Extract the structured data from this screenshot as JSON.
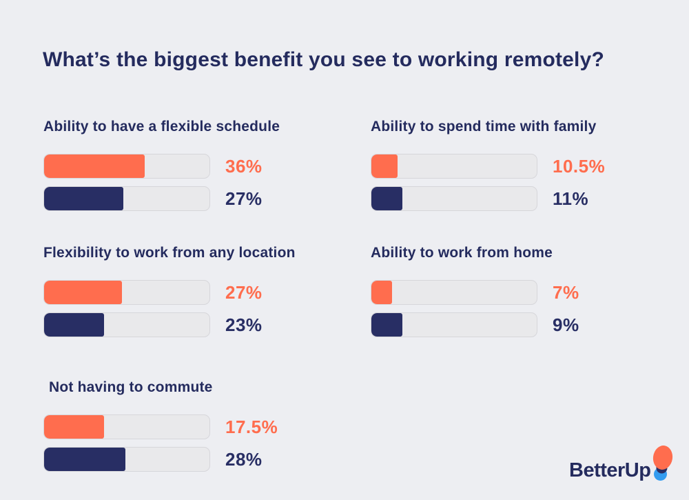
{
  "page": {
    "title": "What’s the biggest benefit you see to working remotely?"
  },
  "colors": {
    "background": "#EDEEF2",
    "orange": "#FF6D4E",
    "navy": "#282E64",
    "text": "#242B5E",
    "track": "#E9E9EB",
    "track_border": "#D6D6DA",
    "logo_blue": "#339CF0"
  },
  "chart_data": {
    "type": "bar",
    "orientation": "horizontal",
    "title": "What’s the biggest benefit you see to working remotely?",
    "unit": "%",
    "legend": "none",
    "axes": "none (value labels shown next to each bar)",
    "layout": "two columns of grouped progress-style bars, fifth group bottom-left",
    "categories": [
      "Ability to have a flexible schedule",
      "Ability to spend time with family",
      "Flexibility to work from any location",
      "Ability to work from home",
      "Not having to commute"
    ],
    "series": [
      {
        "name": "orange-series",
        "color": "#FF6D4E",
        "values": [
          36,
          10.5,
          27,
          7,
          17.5
        ]
      },
      {
        "name": "navy-series",
        "color": "#282E64",
        "values": [
          27,
          11,
          23,
          9,
          28
        ]
      }
    ],
    "groups": [
      {
        "label": "Ability to have a flexible schedule",
        "bars": [
          {
            "series": "orange",
            "value": 36,
            "display": "36%",
            "fill_fraction": 0.61
          },
          {
            "series": "navy",
            "value": 27,
            "display": "27%",
            "fill_fraction": 0.48
          }
        ]
      },
      {
        "label": "Ability to spend time with family",
        "bars": [
          {
            "series": "orange",
            "value": 10.5,
            "display": "10.5%",
            "fill_fraction": 0.16
          },
          {
            "series": "navy",
            "value": 11,
            "display": "11%",
            "fill_fraction": 0.186
          }
        ]
      },
      {
        "label": "Flexibility to work from any location",
        "bars": [
          {
            "series": "orange",
            "value": 27,
            "display": "27%",
            "fill_fraction": 0.47
          },
          {
            "series": "navy",
            "value": 23,
            "display": "23%",
            "fill_fraction": 0.363
          }
        ]
      },
      {
        "label": "Ability to work from home",
        "bars": [
          {
            "series": "orange",
            "value": 7,
            "display": "7%",
            "fill_fraction": 0.124
          },
          {
            "series": "navy",
            "value": 9,
            "display": "9%",
            "fill_fraction": 0.186
          }
        ]
      },
      {
        "label": "Not having to commute",
        "bars": [
          {
            "series": "orange",
            "value": 17.5,
            "display": "17.5%",
            "fill_fraction": 0.361
          },
          {
            "series": "navy",
            "value": 28,
            "display": "28%",
            "fill_fraction": 0.493
          }
        ]
      }
    ]
  },
  "logo": {
    "text": "BetterUp"
  }
}
